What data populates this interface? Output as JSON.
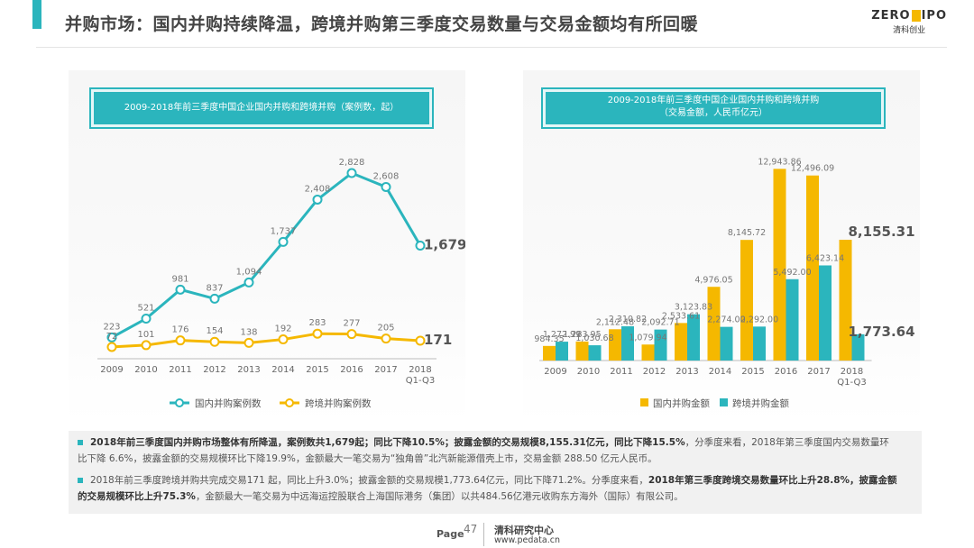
{
  "header": {
    "title": "并购市场：国内并购持续降温，跨境并购第三季度交易数量与交易金额均有所回暖",
    "logo_text_left": "ZERO",
    "logo_text_right": "IPO",
    "logo_sub": "清科创业"
  },
  "colors": {
    "teal": "#2bb5bd",
    "yellow": "#f5b800",
    "text": "#555555"
  },
  "chart_data": [
    {
      "type": "line",
      "title": "2009-2018年前三季度中国企业国内并购和跨境并购（案例数，起）",
      "categories": [
        "2009",
        "2010",
        "2011",
        "2012",
        "2013",
        "2014",
        "2015",
        "2016",
        "2017",
        "2018"
      ],
      "category_sublabels": [
        "",
        "",
        "",
        "",
        "",
        "",
        "",
        "",
        "",
        "Q1-Q3"
      ],
      "series": [
        {
          "name": "国内并购案例数",
          "color": "#2bb5bd",
          "values": [
            223,
            521,
            981,
            837,
            1094,
            1737,
            2408,
            2828,
            2608,
            1679
          ],
          "labels": [
            "223",
            "521",
            "981",
            "837",
            "1,094",
            "1,737",
            "2,408",
            "2,828",
            "2,608",
            "1,679"
          ]
        },
        {
          "name": "跨境并购案例数",
          "color": "#f5b800",
          "values": [
            72,
            101,
            176,
            154,
            138,
            192,
            283,
            277,
            205,
            171
          ],
          "labels": [
            "72",
            "101",
            "176",
            "154",
            "138",
            "192",
            "283",
            "277",
            "205",
            "171"
          ]
        }
      ],
      "ylim": [
        0,
        3000
      ],
      "legend": "bottom"
    },
    {
      "type": "bar",
      "title_line1": "2009-2018年前三季度中国企业国内并购和跨境并购",
      "title_line2": "（交易金额，人民币亿元）",
      "categories": [
        "2009",
        "2010",
        "2011",
        "2012",
        "2013",
        "2014",
        "2015",
        "2016",
        "2017",
        "2018"
      ],
      "category_sublabels": [
        "",
        "",
        "",
        "",
        "",
        "",
        "",
        "",
        "",
        "Q1-Q3"
      ],
      "series": [
        {
          "name": "国内并购金额",
          "color": "#f5b800",
          "values": [
            984.35,
            1283.95,
            2112.48,
            1079.94,
            2533.61,
            4976.05,
            8145.72,
            12943.86,
            12496.09,
            8155.31
          ],
          "labels": [
            "984.35",
            "1,283.95",
            "2,112.48",
            "1,079.94",
            "2,533.61",
            "4,976.05",
            "8,145.72",
            "12,943.86",
            "12,496.09",
            "8,155.31"
          ]
        },
        {
          "name": "跨境并购金额",
          "color": "#2bb5bd",
          "values": [
            1272.99,
            1030.68,
            2310.82,
            2092.71,
            3123.83,
            2274.0,
            2292.0,
            5492.0,
            6423.14,
            1773.64
          ],
          "labels": [
            "1,272.99",
            "1,030.68",
            "2,310.82",
            "2,092.71",
            "3,123.83",
            "2,274.00",
            "2,292.00",
            "5,492.00",
            "6,423.14",
            "1,773.64"
          ]
        }
      ],
      "ylim": [
        0,
        14000
      ],
      "legend": "bottom"
    }
  ],
  "notes": [
    {
      "bold": "2018年前三季度国内并购市场整体有所降温，案例数共1,679起；同比下降10.5%；披露金额的交易规模8,155.31亿元，同比下降15.5%",
      "rest": "，分季度来看，2018年第三季度国内交易数量环比下降 6.6%，披露金额的交易规模环比下降19.9%，金额最大一笔交易为“独角兽”北汽新能源借壳上市，交易金额 288.50 亿元人民币。"
    },
    {
      "pre": "2018年前三季度跨境并购共完成交易171 起，同比上升3.0%；披露金额的交易规模1,773.64亿元，同比下降71.2%。分季度来看，",
      "bold": "2018年第三季度跨境交易数量环比上升28.8%，披露金额的交易规模环比上升75.3%",
      "rest": "，金额最大一笔交易为中远海运控股联合上海国际港务（集团）以共484.56亿港元收购东方海外（国际）有限公司。"
    }
  ],
  "footer": {
    "page_label": "Page",
    "page_number": "47",
    "org": "清科研究中心",
    "url": "www.pedata.cn"
  }
}
